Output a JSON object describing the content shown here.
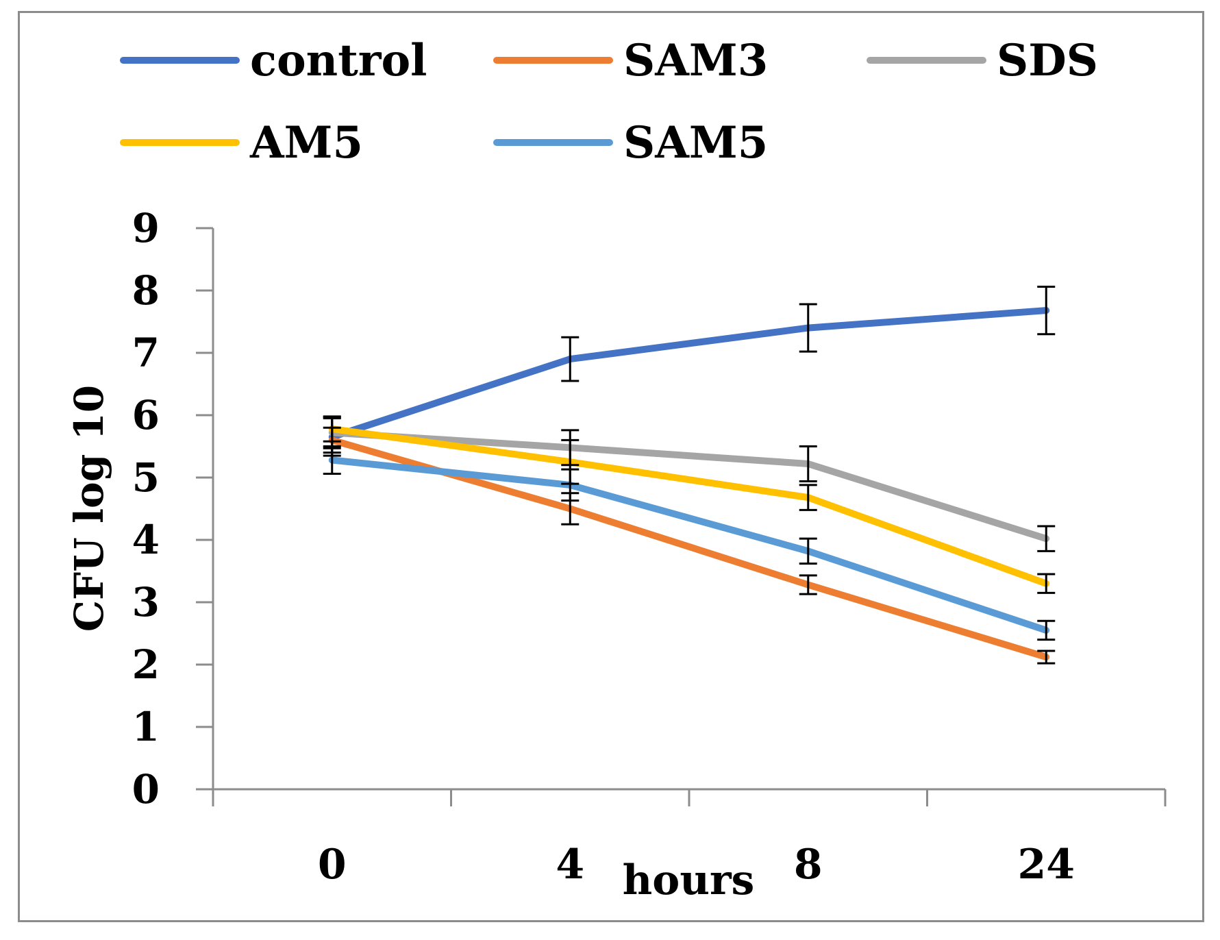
{
  "chart_data": {
    "type": "line",
    "xlabel": "hours",
    "ylabel": "CFU log 10",
    "categories": [
      "0",
      "4",
      "8",
      "24"
    ],
    "ylim": [
      0,
      9
    ],
    "yticks": [
      "0",
      "1",
      "2",
      "3",
      "4",
      "5",
      "6",
      "7",
      "8",
      "9"
    ],
    "grid": false,
    "legend_position": "top",
    "series": [
      {
        "name": "control",
        "color": "#4472C4",
        "values": [
          5.65,
          6.9,
          7.4,
          7.68
        ],
        "errors": [
          0.3,
          0.35,
          0.38,
          0.38
        ]
      },
      {
        "name": "SAM3",
        "color": "#ED7D31",
        "values": [
          5.6,
          4.5,
          3.28,
          2.12
        ],
        "errors": [
          0.2,
          0.25,
          0.15,
          0.1
        ]
      },
      {
        "name": "SDS",
        "color": "#A5A5A5",
        "values": [
          5.72,
          5.48,
          5.22,
          4.02
        ],
        "errors": [
          0.25,
          0.28,
          0.28,
          0.2
        ]
      },
      {
        "name": "AM5",
        "color": "#FFC000",
        "values": [
          5.78,
          5.25,
          4.68,
          3.3
        ],
        "errors": [
          0.2,
          0.35,
          0.2,
          0.15
        ]
      },
      {
        "name": "SAM5",
        "color": "#5B9BD5",
        "values": [
          5.28,
          4.88,
          3.82,
          2.55
        ],
        "errors": [
          0.22,
          0.25,
          0.2,
          0.15
        ]
      }
    ]
  }
}
